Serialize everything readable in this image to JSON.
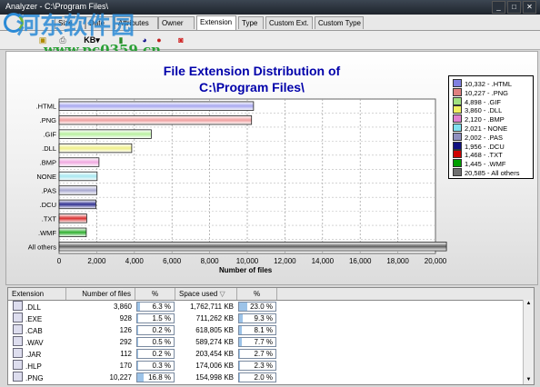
{
  "window": {
    "title": "Analyzer - C:\\Program Files\\",
    "min": "_",
    "max": "□",
    "close": "✕"
  },
  "tabs": [
    {
      "label": "Size"
    },
    {
      "label": "Date"
    },
    {
      "label": "Attributes"
    },
    {
      "label": "Owner"
    },
    {
      "label": "Extension"
    },
    {
      "label": "Type"
    },
    {
      "label": "Custom Ext."
    },
    {
      "label": "Custom Type"
    }
  ],
  "toolbar": {
    "units_label": "KB",
    "units_arrow": "▾"
  },
  "watermark": {
    "text": "河东软件园",
    "url": "www.pc0359.cn"
  },
  "chart_data": {
    "type": "bar",
    "orientation": "horizontal",
    "title": "File Extension Distribution of\nC:\\Program Files\\",
    "title_line1": "File Extension Distribution of",
    "title_line2": "C:\\Program Files\\",
    "xlabel": "Number of files",
    "xlim": [
      0,
      20000
    ],
    "xticks": [
      "0",
      "2,000",
      "4,000",
      "6,000",
      "8,000",
      "10,000",
      "12,000",
      "14,000",
      "16,000",
      "18,000",
      "20,000"
    ],
    "categories": [
      ".HTML",
      ".PNG",
      ".GIF",
      ".DLL",
      ".BMP",
      "NONE",
      ".PAS",
      ".DCU",
      ".TXT",
      ".WMF",
      "All others"
    ],
    "values": [
      10332,
      10227,
      4898,
      3860,
      2120,
      2021,
      2002,
      1956,
      1468,
      1445,
      20585
    ],
    "colors": [
      "#a8a8f0",
      "#f0a0a0",
      "#b8f0a0",
      "#f0f08a",
      "#f0a8e0",
      "#a8e8f0",
      "#a8a8d0",
      "#303090",
      "#d83030",
      "#30b030",
      "#606060"
    ],
    "legend": [
      "10,332 - .HTML",
      "10,227 - .PNG",
      "4,898 - .GIF",
      "3,860 - .DLL",
      "2,120 - .BMP",
      "2,021 - NONE",
      "2,002 - .PAS",
      "1,956 - .DCU",
      "1,468 - .TXT",
      "1,445 - .WMF",
      "20,585 - All others"
    ],
    "legend_colors": [
      "#8080e0",
      "#e08080",
      "#a0e080",
      "#f0f060",
      "#e080d0",
      "#80e0f0",
      "#9090c0",
      "#101080",
      "#d00000",
      "#00a000",
      "#707070"
    ],
    "grid": true,
    "legend_position": "right"
  },
  "table": {
    "headers": [
      "Extension",
      "Number of files",
      "%",
      "Space used",
      "%"
    ],
    "sort_indicator": "▽",
    "rows": [
      {
        "ext": ".DLL",
        "count": "3,860",
        "pct": "6.3 %",
        "pct_val": 6.3,
        "space": "1,762,711 KB",
        "spct": "23.0 %",
        "spct_val": 23.0,
        "icon": "dll-icon"
      },
      {
        "ext": ".EXE",
        "count": "928",
        "pct": "1.5 %",
        "pct_val": 1.5,
        "space": "711,262 KB",
        "spct": "9.3 %",
        "spct_val": 9.3,
        "icon": "exe-icon"
      },
      {
        "ext": ".CAB",
        "count": "126",
        "pct": "0.2 %",
        "pct_val": 0.2,
        "space": "618,805 KB",
        "spct": "8.1 %",
        "spct_val": 8.1,
        "icon": "cab-icon"
      },
      {
        "ext": ".WAV",
        "count": "292",
        "pct": "0.5 %",
        "pct_val": 0.5,
        "space": "589,274 KB",
        "spct": "7.7 %",
        "spct_val": 7.7,
        "icon": "wav-icon"
      },
      {
        "ext": ".JAR",
        "count": "112",
        "pct": "0.2 %",
        "pct_val": 0.2,
        "space": "203,454 KB",
        "spct": "2.7 %",
        "spct_val": 2.7,
        "icon": "jar-icon"
      },
      {
        "ext": ".HLP",
        "count": "170",
        "pct": "0.3 %",
        "pct_val": 0.3,
        "space": "174,006 KB",
        "spct": "2.3 %",
        "spct_val": 2.3,
        "icon": "help-icon"
      },
      {
        "ext": ".PNG",
        "count": "10,227",
        "pct": "16.8 %",
        "pct_val": 16.8,
        "space": "154,998 KB",
        "spct": "2.0 %",
        "spct_val": 2.0,
        "icon": "png-icon"
      }
    ]
  }
}
